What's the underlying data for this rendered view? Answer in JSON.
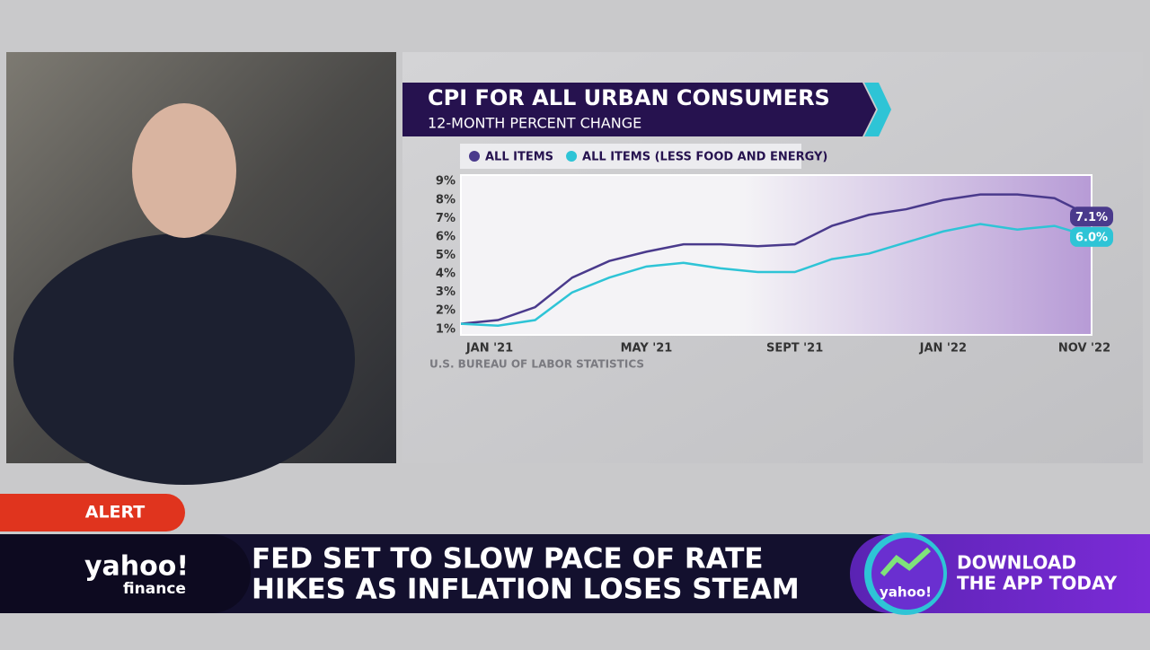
{
  "chart_data": {
    "type": "line",
    "title": "CPI FOR ALL URBAN CONSUMERS",
    "subtitle": "12-MONTH PERCENT CHANGE",
    "source": "U.S. BUREAU OF LABOR STATISTICS",
    "categories": [
      "JAN '21",
      null,
      null,
      null,
      null,
      "MAY '21",
      null,
      null,
      null,
      "SEPT '21",
      null,
      null,
      null,
      "JAN '22",
      null,
      null,
      null,
      "NOV '22"
    ],
    "series": [
      {
        "name": "ALL ITEMS",
        "color": "#4a3a8c",
        "values": [
          1.3,
          1.5,
          2.2,
          3.8,
          4.7,
          5.2,
          5.6,
          5.6,
          5.5,
          5.6,
          6.6,
          7.2,
          7.5,
          8.0,
          8.3,
          8.3,
          8.1,
          7.1
        ],
        "value_labels": [
          null,
          null,
          null,
          null,
          null,
          null,
          null,
          null,
          null,
          null,
          null,
          null,
          null,
          null,
          null,
          null,
          null,
          "7.1%"
        ]
      },
      {
        "name": "ALL ITEMS (LESS FOOD AND ENERGY)",
        "color": "#2ec4d6",
        "values": [
          1.3,
          1.2,
          1.5,
          3.0,
          3.8,
          4.4,
          4.6,
          4.3,
          4.1,
          4.1,
          4.8,
          5.1,
          5.7,
          6.3,
          6.7,
          6.4,
          6.6,
          6.0
        ],
        "value_labels": [
          null,
          null,
          null,
          null,
          null,
          null,
          null,
          null,
          null,
          null,
          null,
          null,
          null,
          null,
          null,
          null,
          null,
          "6.0%"
        ]
      }
    ],
    "ylim": [
      0.7,
      9.35
    ],
    "yticks": [
      {
        "value": 1,
        "label": "1%"
      },
      {
        "value": 2,
        "label": "2%"
      },
      {
        "value": 3,
        "label": "3%"
      },
      {
        "value": 4,
        "label": "4%"
      },
      {
        "value": 5,
        "label": "5%"
      },
      {
        "value": 6,
        "label": "6%"
      },
      {
        "value": 7,
        "label": "7%"
      },
      {
        "value": 8,
        "label": "8%"
      },
      {
        "value": 9,
        "label": "9%"
      }
    ],
    "grid": false
  },
  "lower_third": {
    "alert": "ALERT",
    "headline": [
      "FED SET TO SLOW PACE OF RATE",
      "HIKES AS INFLATION LOSES STEAM"
    ],
    "logo": "yahoo!",
    "logo_sub": "finance",
    "promo": [
      "DOWNLOAD",
      "THE APP TODAY"
    ],
    "app_icon": "yahoo!"
  }
}
